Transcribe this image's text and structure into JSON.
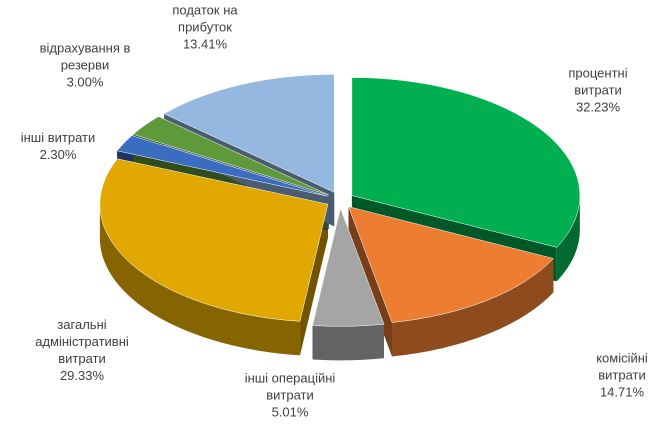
{
  "chart_data": {
    "type": "pie",
    "categories": [
      "процентні витрати",
      "комісійні витрати",
      "інші операційні витрати",
      "загальні адміністративні витрати",
      "інші витрати",
      "відрахування в резерви",
      "податок на прибуток"
    ],
    "values": [
      32.23,
      14.71,
      5.01,
      29.33,
      2.3,
      3.0,
      13.41
    ],
    "value_labels": [
      "32.23%",
      "14.71%",
      "5.01%",
      "29.33%",
      "2.30%",
      "3.00%",
      "13.41%"
    ],
    "colors": [
      "#00b050",
      "#ed7d31",
      "#a5a5a5",
      "#e0a800",
      "#3a6cc0",
      "#5e9a3a",
      "#94b8e0"
    ]
  }
}
